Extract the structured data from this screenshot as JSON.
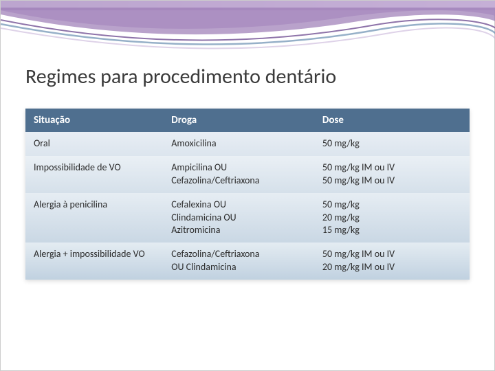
{
  "title": "Regimes para procedimento dentário",
  "table": {
    "headers": [
      "Situação",
      "Droga",
      "Dose"
    ],
    "rows": [
      {
        "situacao": "Oral",
        "droga": "Amoxicilina",
        "dose": "50 mg/kg"
      },
      {
        "situacao": "Impossibilidade de VO",
        "droga": "Ampicilina OU\nCefazolina/Ceftriaxona",
        "dose": "50 mg/kg IM ou IV\n50 mg/kg IM ou IV"
      },
      {
        "situacao": "Alergia à penicilina",
        "droga": "Cefalexina OU\nClindamicina OU\nAzitromicina",
        "dose": "50 mg/kg\n20 mg/kg\n15 mg/kg"
      },
      {
        "situacao": "Alergia + impossibilidade VO",
        "droga": "Cefazolina/Ceftriaxona\nOU Clindamicina",
        "dose": "50 mg/kg IM ou IV\n20 mg/kg IM ou IV"
      }
    ]
  },
  "decor": {
    "wave_colors": {
      "purple_dark": "#7a5a9a",
      "purple_mid": "#9b7bb5",
      "purple_light": "#c8b4d8",
      "blue": "#6a8fb0",
      "white": "#ffffff"
    }
  }
}
